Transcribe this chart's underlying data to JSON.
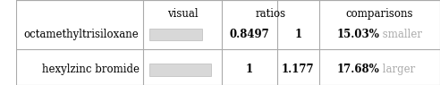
{
  "rows": [
    {
      "name": "octamethyltrisiloxane",
      "bar_ratio": 0.8497,
      "ratio_left": "0.8497",
      "ratio_right": "1",
      "comparison_pct": "15.03%",
      "comparison_word": " smaller"
    },
    {
      "name": "hexylzinc bromide",
      "bar_ratio": 1.0,
      "ratio_left": "1",
      "ratio_right": "1.177",
      "comparison_pct": "17.68%",
      "comparison_word": " larger"
    }
  ],
  "col_headers": [
    "visual",
    "ratios",
    "comparisons"
  ],
  "comparison_word_color": "#aaaaaa",
  "bar_fill": "#d8d8d8",
  "bar_edge": "#bbbbbb",
  "background": "#ffffff",
  "text_color": "#000000",
  "line_color": "#aaaaaa",
  "font_size": 8.5,
  "header_font_size": 8.5
}
